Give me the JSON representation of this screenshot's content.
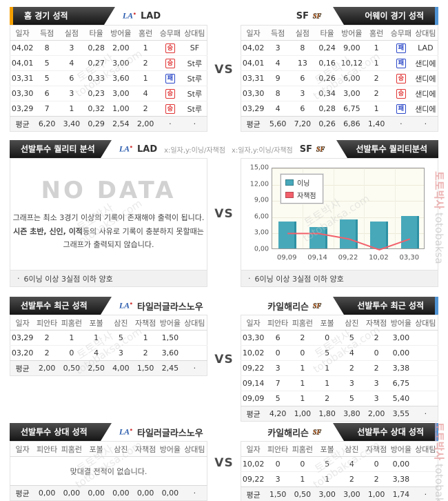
{
  "vs_label": "VS",
  "bullet": "·",
  "watermark": {
    "kr": "토토박사",
    "en": "totobaksa.com",
    "en_short": "totobaksa"
  },
  "colors": {
    "accent_orange": "#f5a100",
    "accent_blue": "#4f94d4",
    "win_red": "#e03434",
    "loss_blue": "#2c49c8",
    "bar_teal": "#47a8ba",
    "line_red": "#f2606b"
  },
  "section1": {
    "left": {
      "title": "홈 경기 성적",
      "team": "LAD",
      "headers": [
        "일자",
        "득점",
        "실점",
        "타율",
        "방어율",
        "홈런",
        "승무패",
        "상대팀"
      ],
      "rows": [
        [
          "04,02",
          "8",
          "3",
          "0,28",
          "2,00",
          "1",
          {
            "t": "승",
            "k": "win"
          },
          "SF"
        ],
        [
          "04,01",
          "5",
          "4",
          "0,27",
          "3,00",
          "2",
          {
            "t": "승",
            "k": "win"
          },
          "St루"
        ],
        [
          "03,31",
          "5",
          "6",
          "0,33",
          "3,60",
          "1",
          {
            "t": "패",
            "k": "loss"
          },
          "St루"
        ],
        [
          "03,30",
          "6",
          "3",
          "0,23",
          "3,00",
          "4",
          {
            "t": "승",
            "k": "win"
          },
          "St루"
        ],
        [
          "03,29",
          "7",
          "1",
          "0,32",
          "1,00",
          "2",
          {
            "t": "승",
            "k": "win"
          },
          "St루"
        ],
        [
          "평균",
          "6,20",
          "3,40",
          "0,29",
          "2,54",
          "2,00",
          "·",
          "·"
        ]
      ]
    },
    "right": {
      "title": "어웨이 경기 성적",
      "team": "SF",
      "headers": [
        "일자",
        "득점",
        "실점",
        "타율",
        "방어율",
        "홈런",
        "승무패",
        "상대팀"
      ],
      "rows": [
        [
          "04,02",
          "3",
          "8",
          "0,24",
          "9,00",
          "1",
          {
            "t": "패",
            "k": "loss"
          },
          "LAD"
        ],
        [
          "04,01",
          "4",
          "13",
          "0,16",
          "10,12",
          "1",
          {
            "t": "패",
            "k": "loss"
          },
          "샌디에"
        ],
        [
          "03,31",
          "9",
          "6",
          "0,26",
          "6,00",
          "2",
          {
            "t": "승",
            "k": "win"
          },
          "샌디에"
        ],
        [
          "03,30",
          "8",
          "3",
          "0,34",
          "3,00",
          "2",
          {
            "t": "승",
            "k": "win"
          },
          "샌디에"
        ],
        [
          "03,29",
          "4",
          "6",
          "0,28",
          "6,75",
          "1",
          {
            "t": "패",
            "k": "loss"
          },
          "샌디에"
        ],
        [
          "평균",
          "5,60",
          "7,20",
          "0,26",
          "6,86",
          "1,40",
          "·",
          "·"
        ]
      ]
    }
  },
  "section2": {
    "left": {
      "title": "선발투수 퀄리티 분석",
      "team": "LAD",
      "axis_note": "x:일자,y:이닝/자책점",
      "no_data": {
        "big": "NO DATA",
        "line1": "그래프는 최소 3경기 이상의 기록이 존재해야 출력이 됩니다.",
        "line2_bold": "시즌 초반, 신인, 이적",
        "line2_rest": "등의 사유로 기록이 충분하지 못할때는",
        "line3": "그래프가 출력되지 않습니다."
      },
      "footer": "6이닝 이상 3실점 이하 양호"
    },
    "right": {
      "title": "선발투수 퀄리티분석",
      "team": "SF",
      "axis_note": "x:일자,y:이닝/자책점",
      "footer": "6이닝 이상 3실점 이하 양호",
      "chart_data": {
        "type": "combo",
        "categories": [
          "09,09",
          "09,14",
          "09,22",
          "10,02",
          "03,30"
        ],
        "series": [
          {
            "name": "이닝",
            "type": "bar",
            "color": "#47a8ba",
            "values": [
              5.0,
              4.0,
              5.3,
              5.0,
              6.0
            ]
          },
          {
            "name": "자책점",
            "type": "line",
            "color": "#f2606b",
            "values": [
              3,
              3,
              2,
              0,
              2
            ]
          }
        ],
        "ylim": [
          0,
          15
        ],
        "yticks": [
          "0,00",
          "3,00",
          "6,00",
          "9,00",
          "12,00",
          "15,00"
        ],
        "legend_position": "top-left",
        "grid": true
      }
    }
  },
  "section3": {
    "left": {
      "title": "선발투수 최근 성적",
      "pitcher": "타일러글라스노우",
      "headers": [
        "일자",
        "피안타",
        "피홈런",
        "포볼",
        "삼진",
        "자책점",
        "방어율",
        "상대팀"
      ],
      "rows": [
        [
          "03,29",
          "2",
          "1",
          "1",
          "5",
          "1",
          "1,50",
          ""
        ],
        [
          "03,20",
          "2",
          "0",
          "4",
          "3",
          "2",
          "3,60",
          ""
        ],
        [
          "평균",
          "2,00",
          "0,50",
          "2,50",
          "4,00",
          "1,50",
          "2,45",
          "·"
        ]
      ]
    },
    "right": {
      "title": "선발투수 최근 성적",
      "pitcher": "카일해리슨",
      "headers": [
        "일자",
        "피안타",
        "피홈런",
        "포볼",
        "삼진",
        "자책점",
        "방어율",
        "상대팀"
      ],
      "rows": [
        [
          "03,30",
          "6",
          "2",
          "0",
          "5",
          "2",
          "3,00",
          ""
        ],
        [
          "10,02",
          "0",
          "0",
          "5",
          "4",
          "0",
          "0,00",
          ""
        ],
        [
          "09,22",
          "3",
          "1",
          "1",
          "2",
          "2",
          "3,38",
          ""
        ],
        [
          "09,14",
          "7",
          "1",
          "1",
          "3",
          "3",
          "6,75",
          ""
        ],
        [
          "09,09",
          "5",
          "1",
          "2",
          "5",
          "3",
          "5,40",
          ""
        ],
        [
          "평균",
          "4,20",
          "1,00",
          "1,80",
          "3,80",
          "2,00",
          "3,55",
          "·"
        ]
      ]
    }
  },
  "section4": {
    "left": {
      "title": "선발투수 상대 성적",
      "pitcher": "타일러글라스노우",
      "headers": [
        "일자",
        "피안타",
        "피홈런",
        "포볼",
        "삼진",
        "자책점",
        "방어율",
        "상대팀"
      ],
      "message": "맞대결 전적이 없습니다.",
      "rows": [
        [
          "평균",
          "0,00",
          "0,00",
          "0,00",
          "0,00",
          "0,00",
          "0,00",
          "·"
        ]
      ]
    },
    "right": {
      "title": "선발투수 상대 성적",
      "pitcher": "카일해리슨",
      "headers": [
        "일자",
        "피안타",
        "피홈런",
        "포볼",
        "삼진",
        "자책점",
        "방어율",
        "상대팀"
      ],
      "rows": [
        [
          "10,02",
          "0",
          "0",
          "5",
          "4",
          "0",
          "0,00",
          ""
        ],
        [
          "09,22",
          "3",
          "1",
          "1",
          "2",
          "2",
          "3,38",
          ""
        ],
        [
          "평균",
          "1,50",
          "0,50",
          "3,00",
          "3,00",
          "1,00",
          "1,74",
          "·"
        ]
      ]
    }
  }
}
